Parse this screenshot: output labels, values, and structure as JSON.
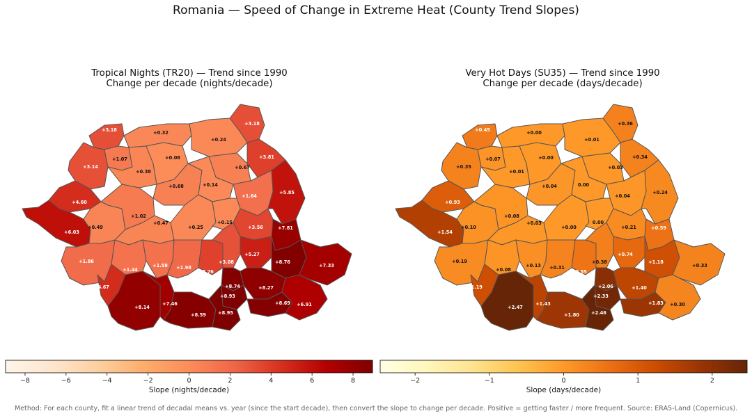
{
  "title": "Romania — Speed of Change in Extreme Heat (County Trend Slopes)",
  "panels": [
    {
      "title_line1": "Tropical Nights (TR20) — Trend since 1990",
      "title_line2": "Change per decade (nights/decade)",
      "colorbar_label": "Slope (nights/decade)",
      "ticks": [
        -8,
        -6,
        -4,
        -2,
        0,
        2,
        4,
        6,
        8
      ],
      "tick_labels": [
        "−8",
        "−6",
        "−4",
        "−2",
        "0",
        "2",
        "4",
        "6",
        "8"
      ],
      "vmin": -8.95,
      "vmax": 8.95,
      "colormap": [
        "#fff5eb",
        "#fee6ce",
        "#fdd0a2",
        "#fdae6b",
        "#fc8d59",
        "#ef6548",
        "#d7301f",
        "#b30000",
        "#7f0000"
      ],
      "values": [
        "+3.18",
        "+0.32",
        "+3.18",
        "+0.24",
        "+3.14",
        "+1.07",
        "+0.38",
        "+0.08",
        "+0.67",
        "+3.81",
        "+4.60",
        "+0.68",
        "+0.14",
        "+1.64",
        "+5.85",
        "+6.03",
        "+0.49",
        "+1.02",
        "+0.47",
        "+0.25",
        "+0.15",
        "+3.56",
        "+7.81",
        "+1.86",
        "+1.44",
        "+1.58",
        "+1.98",
        "+3.76",
        "+3.08",
        "+5.27",
        "+8.76",
        "+7.33",
        "+4.67",
        "+8.74",
        "+8.27",
        "+8.93",
        "+8.14",
        "+7.46",
        "+8.59",
        "+8.95",
        "+8.69",
        "+6.91"
      ]
    },
    {
      "title_line1": "Very Hot Days (SU35) — Trend since 1990",
      "title_line2": "Change per decade (days/decade)",
      "colorbar_label": "Slope (days/decade)",
      "ticks": [
        -2,
        -1,
        0,
        1,
        2
      ],
      "tick_labels": [
        "−2",
        "−1",
        "0",
        "1",
        "2"
      ],
      "vmin": -2.47,
      "vmax": 2.47,
      "colormap": [
        "#ffffe5",
        "#fff7bc",
        "#fee391",
        "#fec44f",
        "#fe9929",
        "#ec7014",
        "#cc4c02",
        "#993404",
        "#662506"
      ],
      "values": [
        "+0.45",
        "+0.00",
        "+0.36",
        "+0.01",
        "+0.35",
        "+0.07",
        "+0.01",
        "+0.00",
        "+0.03",
        "+0.34",
        "+0.93",
        "+0.04",
        "0.00",
        "+0.04",
        "+0.24",
        "+1.54",
        "+0.10",
        "+0.08",
        "+0.03",
        "+0.00",
        "0.00",
        "+0.21",
        "+0.59",
        "+0.19",
        "+0.08",
        "+0.13",
        "+0.31",
        "+0.55",
        "+0.38",
        "+0.74",
        "+1.18",
        "+0.33",
        "+1.19",
        "+2.06",
        "+1.40",
        "+2.33",
        "+2.47",
        "+1.43",
        "+1.80",
        "+2.46",
        "+1.83",
        "+0.30"
      ]
    }
  ],
  "footnote": "Method: For each county, fit a linear trend of decadal means vs. year (since the start decade), then convert the slope to change per decade. Positive = getting faster / more frequent. Source: ERA5-Land (Copernicus)."
}
